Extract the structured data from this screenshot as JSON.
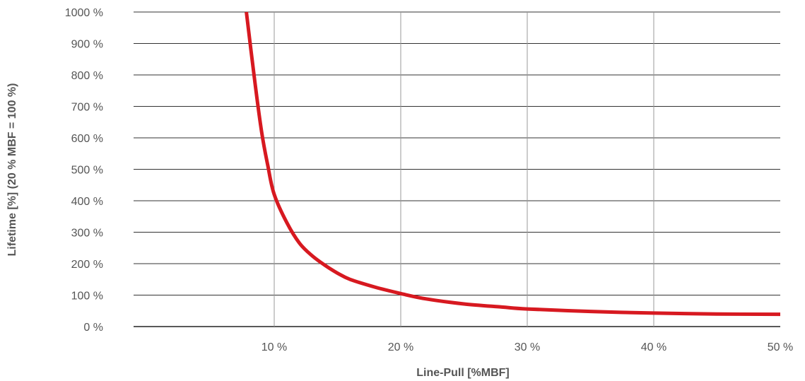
{
  "chart_data": {
    "type": "line",
    "title": "",
    "xlabel": "Line-Pull [%MBF]",
    "ylabel": "Lifetime [%] (20 % MBF = 100 %)",
    "xlim": [
      0,
      50
    ],
    "ylim": [
      0,
      1000
    ],
    "x_ticks": [
      {
        "value": 10,
        "label": "10 %"
      },
      {
        "value": 20,
        "label": "20 %"
      },
      {
        "value": 30,
        "label": "30 %"
      },
      {
        "value": 40,
        "label": "40 %"
      },
      {
        "value": 50,
        "label": "50 %"
      }
    ],
    "y_ticks": [
      {
        "value": 0,
        "label": "0 %"
      },
      {
        "value": 100,
        "label": "100 %"
      },
      {
        "value": 200,
        "label": "200 %"
      },
      {
        "value": 300,
        "label": "300 %"
      },
      {
        "value": 400,
        "label": "400 %"
      },
      {
        "value": 500,
        "label": "500 %"
      },
      {
        "value": 600,
        "label": "600 %"
      },
      {
        "value": 700,
        "label": "700 %"
      },
      {
        "value": 800,
        "label": "800 %"
      },
      {
        "value": 900,
        "label": "900 %"
      },
      {
        "value": 1000,
        "label": "1000 %"
      }
    ],
    "grid": {
      "horizontal": true,
      "vertical": true
    },
    "series": [
      {
        "color": "#d71920",
        "x": [
          7.8,
          8.4,
          9,
          9.5,
          10,
          11,
          12,
          13,
          14,
          15,
          16,
          18,
          20,
          22,
          25,
          28,
          30,
          35,
          40,
          45,
          50
        ],
        "y": [
          1000,
          800,
          620,
          510,
          420,
          330,
          265,
          225,
          195,
          170,
          150,
          125,
          105,
          88,
          72,
          62,
          56,
          48,
          43,
          40,
          39
        ]
      }
    ]
  }
}
